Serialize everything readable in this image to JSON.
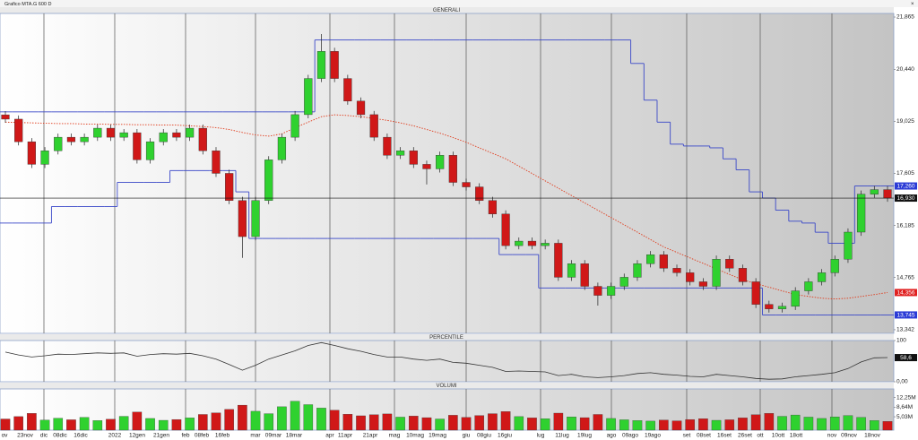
{
  "window": {
    "title": "Grafico MTA.G 600 D"
  },
  "chart_data": [
    {
      "type": "candlestick",
      "title": "GENERALI",
      "open": [
        19200,
        19082,
        18466,
        17850,
        18220,
        18589,
        18466,
        18589,
        18835,
        18589,
        18712,
        17973,
        18466,
        18712,
        18589,
        18835,
        18220,
        17604,
        16865,
        15880,
        16865,
        17973,
        18589,
        19205,
        20190,
        20929,
        20190,
        19574,
        19205,
        18589,
        18097,
        18220,
        17850,
        17727,
        18097,
        17358,
        17235,
        16865,
        16496,
        15634,
        15757,
        15634,
        15700,
        14772,
        15141,
        14525,
        14279,
        14525,
        14772,
        15141,
        15387,
        15018,
        14895,
        14649,
        14525,
        15264,
        15018,
        14649,
        14033,
        13910,
        13980,
        14402,
        14649,
        14895,
        15264,
        16003,
        17037,
        17161
      ],
      "high": [
        19300,
        19182,
        18566,
        18320,
        18689,
        18689,
        18689,
        18935,
        18935,
        18812,
        18812,
        18566,
        18812,
        18812,
        18935,
        18935,
        18320,
        17704,
        16965,
        16965,
        18073,
        18689,
        19305,
        20290,
        21400,
        21029,
        20290,
        19674,
        19305,
        18689,
        18320,
        18320,
        17950,
        18197,
        18197,
        17458,
        17335,
        16965,
        16596,
        15857,
        15857,
        15800,
        15800,
        15241,
        15241,
        14625,
        14625,
        14872,
        15241,
        15487,
        15487,
        15118,
        14995,
        14749,
        15364,
        15364,
        15118,
        14749,
        14133,
        14080,
        14502,
        14749,
        14995,
        15364,
        16103,
        17137,
        17261,
        17261
      ],
      "low": [
        18982,
        18366,
        17750,
        17750,
        18120,
        18366,
        18366,
        18489,
        18489,
        18489,
        17873,
        17873,
        18366,
        18489,
        18489,
        18120,
        17504,
        16765,
        15300,
        15780,
        16765,
        17873,
        18489,
        19105,
        20090,
        20090,
        19474,
        19105,
        18489,
        17997,
        17997,
        17750,
        17300,
        17627,
        17258,
        17135,
        16765,
        16396,
        15534,
        15534,
        15534,
        15534,
        14672,
        14672,
        14425,
        14000,
        14179,
        14425,
        14672,
        15041,
        14918,
        14795,
        14549,
        14425,
        14425,
        14918,
        14549,
        13933,
        13810,
        13810,
        13880,
        14302,
        14549,
        14795,
        15164,
        15903,
        16937,
        16830
      ],
      "close": [
        19082,
        18466,
        17850,
        18220,
        18589,
        18466,
        18589,
        18835,
        18589,
        18712,
        17973,
        18466,
        18712,
        18589,
        18835,
        18220,
        17604,
        16865,
        15880,
        16865,
        17973,
        18589,
        19205,
        20190,
        20929,
        20190,
        19574,
        19205,
        18589,
        18097,
        18220,
        17850,
        17727,
        18097,
        17358,
        17235,
        16865,
        16496,
        15634,
        15757,
        15634,
        15700,
        14772,
        15141,
        14525,
        14279,
        14525,
        14772,
        15141,
        15387,
        15018,
        14895,
        14649,
        14525,
        15264,
        15018,
        14649,
        14033,
        13910,
        13980,
        14402,
        14649,
        14895,
        15264,
        16003,
        17037,
        17161,
        16930
      ],
      "up_color": "#2fd12f",
      "down_color": "#d01818",
      "series": [
        {
          "color": "#e03a1a",
          "style": "dotted",
          "values": [
            19000,
            18990,
            18980,
            18970,
            18960,
            18960,
            18950,
            18950,
            18940,
            18940,
            18930,
            18930,
            18920,
            18920,
            18900,
            18880,
            18850,
            18800,
            18720,
            18650,
            18620,
            18680,
            18850,
            19000,
            19150,
            19200,
            19180,
            19150,
            19100,
            19050,
            18980,
            18900,
            18800,
            18700,
            18580,
            18450,
            18300,
            18150,
            18000,
            17800,
            17600,
            17400,
            17200,
            17000,
            16800,
            16600,
            16400,
            16200,
            16000,
            15800,
            15600,
            15450,
            15300,
            15150,
            15000,
            14850,
            14700,
            14600,
            14500,
            14400,
            14300,
            14250,
            14200,
            14180,
            14200,
            14250,
            14300,
            14356
          ]
        },
        {
          "color": "#3a48c8",
          "style": "step",
          "values": [
            19280,
            19280,
            19280,
            19280,
            19280,
            19280,
            19280,
            19280,
            19280,
            19280,
            19280,
            19280,
            19280,
            19280,
            19280,
            19280,
            19280,
            19280,
            19280,
            19280,
            19280,
            19280,
            19280,
            19280,
            21240,
            21240,
            21240,
            21240,
            21240,
            21240,
            21240,
            21240,
            21240,
            21240,
            21240,
            21240,
            21240,
            21240,
            21240,
            21240,
            21240,
            21240,
            21240,
            21240,
            21240,
            21240,
            21240,
            21240,
            20600,
            19600,
            19000,
            18400,
            18350,
            18350,
            18300,
            18000,
            17700,
            17100,
            16930,
            16600,
            16300,
            16250,
            16000,
            15700,
            15700,
            17260,
            17260,
            17260
          ]
        },
        {
          "color": "#3a48c8",
          "style": "step",
          "values": [
            16250,
            16250,
            16250,
            16250,
            16700,
            16700,
            16700,
            16700,
            16700,
            17360,
            17360,
            17360,
            17360,
            17680,
            17680,
            17680,
            17680,
            17680,
            17100,
            15830,
            15830,
            15830,
            15830,
            15830,
            15830,
            15830,
            15830,
            15830,
            15830,
            15830,
            15830,
            15830,
            15830,
            15830,
            15830,
            15830,
            15830,
            15830,
            15390,
            15390,
            15390,
            14480,
            14480,
            14480,
            14480,
            14480,
            14480,
            14480,
            14480,
            14480,
            14480,
            14480,
            14480,
            14480,
            14480,
            14480,
            14480,
            14480,
            13745,
            13745,
            13745,
            13745,
            13745,
            13745,
            13745,
            13745,
            13745,
            13745
          ]
        }
      ],
      "price_tags": [
        {
          "value": 17260,
          "label": "17,260",
          "color": "#2b3bd6"
        },
        {
          "value": 16930,
          "label": "16,930",
          "color": "#111111",
          "hline": true
        },
        {
          "value": 14356,
          "label": "14,356",
          "color": "#e02020"
        },
        {
          "value": 13745,
          "label": "13,745",
          "color": "#2b3bd6"
        }
      ],
      "ylim": [
        13243,
        21963
      ],
      "yticks": [
        {
          "value": 21865,
          "label": "21,865"
        },
        {
          "value": 20440,
          "label": "20,440"
        },
        {
          "value": 19025,
          "label": "19,025"
        },
        {
          "value": 17605,
          "label": "17,605"
        },
        {
          "value": 16185,
          "label": "16,185"
        },
        {
          "value": 14765,
          "label": "14,765"
        },
        {
          "value": 13342,
          "label": "13,342"
        }
      ]
    },
    {
      "type": "line",
      "title": "PERCENTILE",
      "color": "#333333",
      "values": [
        72,
        65,
        60,
        63,
        67,
        66,
        68,
        70,
        69,
        70,
        62,
        66,
        68,
        67,
        69,
        63,
        55,
        42,
        28,
        40,
        55,
        65,
        75,
        88,
        95,
        88,
        80,
        74,
        66,
        60,
        60,
        55,
        52,
        55,
        47,
        45,
        40,
        35,
        25,
        26,
        25,
        24,
        15,
        18,
        12,
        10,
        12,
        15,
        20,
        22,
        18,
        16,
        13,
        12,
        18,
        15,
        12,
        8,
        6,
        7,
        12,
        15,
        18,
        22,
        32,
        48,
        58,
        58.6
      ],
      "price_tags": [
        {
          "value": 58.6,
          "label": "58,6",
          "color": "#111111"
        }
      ],
      "ylim": [
        0,
        100
      ],
      "yticks": [
        100,
        {
          "value": 0,
          "label": "0,00"
        }
      ]
    },
    {
      "type": "bar",
      "title": "VOLUMI",
      "values": [
        4.2,
        5.1,
        6.3,
        3.8,
        4.5,
        3.9,
        4.8,
        3.6,
        4.1,
        5.2,
        6.8,
        4.4,
        3.7,
        4.0,
        4.6,
        5.9,
        6.5,
        7.8,
        9.4,
        7.1,
        6.2,
        8.8,
        10.9,
        9.6,
        8.3,
        7.5,
        6.0,
        5.4,
        5.8,
        6.1,
        4.9,
        5.3,
        4.7,
        4.2,
        5.6,
        4.8,
        5.5,
        6.2,
        7.0,
        5.1,
        4.6,
        4.3,
        6.4,
        5.0,
        4.7,
        5.9,
        4.4,
        3.9,
        3.6,
        3.4,
        3.8,
        3.5,
        4.0,
        4.3,
        3.7,
        3.9,
        4.6,
        5.8,
        6.3,
        5.2,
        5.7,
        4.9,
        4.4,
        5.0,
        5.5,
        4.8,
        3.6,
        3.3
      ],
      "ylim": [
        0,
        15.5
      ],
      "yticks": [
        {
          "value": 12.25,
          "label": "12,25M"
        },
        {
          "value": 8.64,
          "label": "8,64M"
        },
        {
          "value": 5.03,
          "label": "5,03M"
        }
      ],
      "xtick_labels": [
        "ov",
        "23nov",
        "dic",
        "08dic",
        "16dic",
        "2022",
        "12gen",
        "21gen",
        "feb",
        "08feb",
        "16feb",
        "mar",
        "09mar",
        "18mar",
        "apr",
        "11apr",
        "21apr",
        "mag",
        "10mag",
        "19mag",
        "giu",
        "08giu",
        "16giu",
        "lug",
        "11lug",
        "19lug",
        "ago",
        "09ago",
        "19ago",
        "set",
        "08set",
        "16set",
        "26set",
        "ott",
        "10ott",
        "18ott",
        "nov",
        "09nov",
        "18nov"
      ]
    }
  ]
}
